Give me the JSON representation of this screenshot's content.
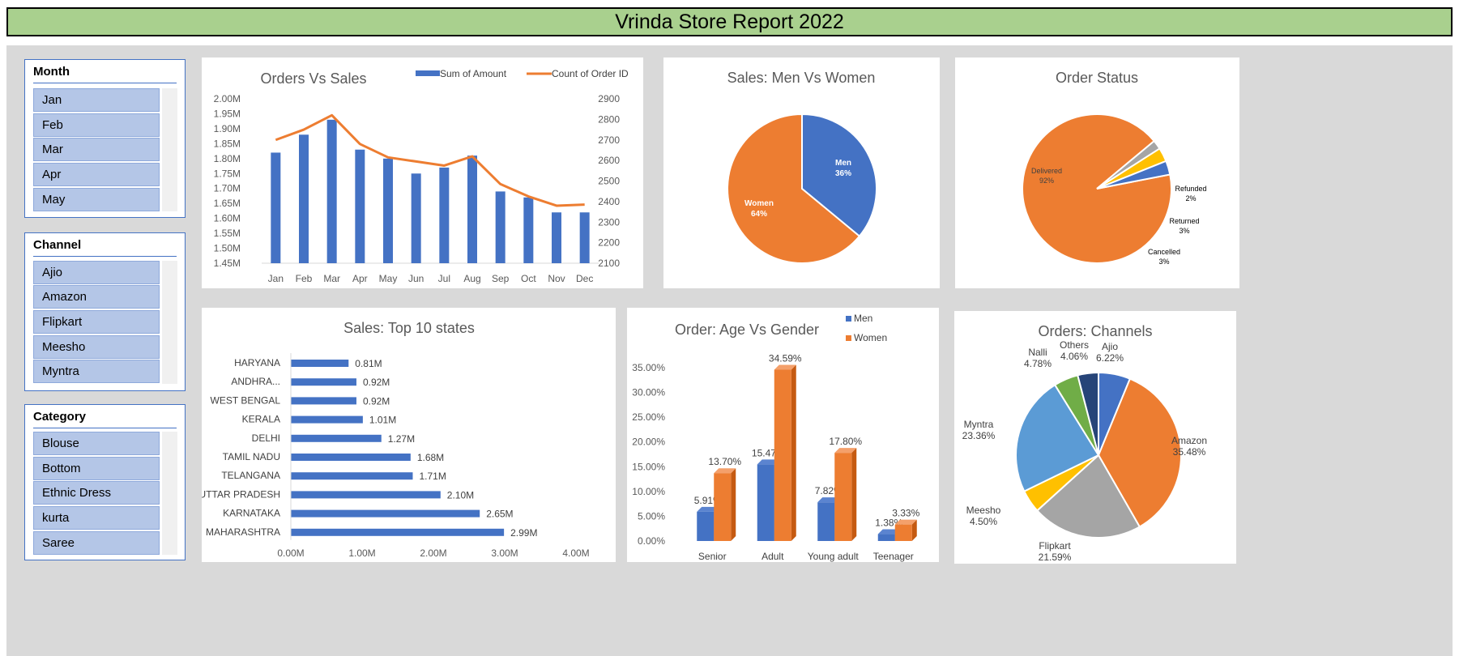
{
  "report_title": "Vrinda Store Report 2022",
  "slicers": {
    "month": {
      "header": "Month",
      "items": [
        "Jan",
        "Feb",
        "Mar",
        "Apr",
        "May"
      ]
    },
    "channel": {
      "header": "Channel",
      "items": [
        "Ajio",
        "Amazon",
        "Flipkart",
        "Meesho",
        "Myntra"
      ]
    },
    "category": {
      "header": "Category",
      "items": [
        "Blouse",
        "Bottom",
        "Ethnic Dress",
        "kurta",
        "Saree"
      ]
    }
  },
  "chart_data": [
    {
      "id": "orders_vs_sales",
      "type": "bar",
      "title": "Orders Vs Sales",
      "categories": [
        "Jan",
        "Feb",
        "Mar",
        "Apr",
        "May",
        "Jun",
        "Jul",
        "Aug",
        "Sep",
        "Oct",
        "Nov",
        "Dec"
      ],
      "series": [
        {
          "name": "Sum of Amount",
          "type": "bar",
          "axis": "left",
          "color": "#4472c4",
          "values": [
            1.82,
            1.88,
            1.93,
            1.83,
            1.8,
            1.75,
            1.77,
            1.81,
            1.69,
            1.67,
            1.62,
            1.62
          ]
        },
        {
          "name": "Count of Order ID",
          "type": "line",
          "axis": "right",
          "color": "#ed7d31",
          "values": [
            2700,
            2750,
            2820,
            2680,
            2615,
            2595,
            2575,
            2620,
            2485,
            2425,
            2380,
            2385
          ]
        }
      ],
      "left_ticks": [
        "2.00M",
        "1.95M",
        "1.90M",
        "1.85M",
        "1.80M",
        "1.75M",
        "1.70M",
        "1.65M",
        "1.60M",
        "1.55M",
        "1.50M",
        "1.45M"
      ],
      "ylim_left": [
        1.45,
        2.0
      ],
      "right_ticks": [
        "2900",
        "2800",
        "2700",
        "2600",
        "2500",
        "2400",
        "2300",
        "2200",
        "2100"
      ],
      "ylim_right": [
        2100,
        2900
      ],
      "legend_position": "top-right"
    },
    {
      "id": "men_vs_women",
      "type": "pie",
      "title": "Sales:  Men Vs Women",
      "slices": [
        {
          "label": "Men",
          "value": 36,
          "display": "36%",
          "color": "#4472c4"
        },
        {
          "label": "Women",
          "value": 64,
          "display": "64%",
          "color": "#ed7d31"
        }
      ]
    },
    {
      "id": "order_status",
      "type": "pie",
      "title": "Order Status",
      "slices": [
        {
          "label": "Delivered",
          "value": 92,
          "display": "92%",
          "color": "#ed7d31"
        },
        {
          "label": "Refunded",
          "value": 2,
          "display": "2%",
          "color": "#a5a5a5"
        },
        {
          "label": "Returned",
          "value": 3,
          "display": "3%",
          "color": "#ffc000"
        },
        {
          "label": "Cancelled",
          "value": 3,
          "display": "3%",
          "color": "#4472c4"
        }
      ]
    },
    {
      "id": "top_states",
      "type": "bar",
      "orientation": "horizontal",
      "title": "Sales: Top 10 states",
      "categories": [
        "HARYANA",
        "ANDHRA...",
        "WEST BENGAL",
        "KERALA",
        "DELHI",
        "TAMIL NADU",
        "TELANGANA",
        "UTTAR PRADESH",
        "KARNATAKA",
        "MAHARASHTRA"
      ],
      "values": [
        0.81,
        0.92,
        0.92,
        1.01,
        1.27,
        1.68,
        1.71,
        2.1,
        2.65,
        2.99
      ],
      "data_labels": [
        "0.81M",
        "0.92M",
        "0.92M",
        "1.01M",
        "1.27M",
        "1.68M",
        "1.71M",
        "2.10M",
        "2.65M",
        "2.99M"
      ],
      "x_ticks": [
        "0.00M",
        "1.00M",
        "2.00M",
        "3.00M",
        "4.00M"
      ],
      "xlim": [
        0,
        4
      ],
      "color": "#4472c4"
    },
    {
      "id": "age_vs_gender",
      "type": "bar",
      "title": "Order: Age Vs Gender",
      "categories": [
        "Senior",
        "Adult",
        "Young adult",
        "Teenager"
      ],
      "series": [
        {
          "name": "Men",
          "color": "#4472c4",
          "values": [
            5.91,
            15.47,
            7.82,
            1.38
          ],
          "labels": [
            "5.91%",
            "15.47%",
            "7.82%",
            "1.38%"
          ]
        },
        {
          "name": "Women",
          "color": "#ed7d31",
          "values": [
            13.7,
            34.59,
            17.8,
            3.33
          ],
          "labels": [
            "13.70%",
            "34.59%",
            "17.80%",
            "3.33%"
          ]
        }
      ],
      "y_ticks": [
        "35.00%",
        "30.00%",
        "25.00%",
        "20.00%",
        "15.00%",
        "10.00%",
        "5.00%",
        "0.00%"
      ],
      "ylim": [
        0,
        35
      ],
      "legend_position": "top-right"
    },
    {
      "id": "channels",
      "type": "pie",
      "title": "Orders: Channels",
      "slices": [
        {
          "label": "Ajio",
          "value": 6.22,
          "display": "6.22%",
          "color": "#4472c4"
        },
        {
          "label": "Amazon",
          "value": 35.48,
          "display": "35.48%",
          "color": "#ed7d31"
        },
        {
          "label": "Flipkart",
          "value": 21.59,
          "display": "21.59%",
          "color": "#a5a5a5"
        },
        {
          "label": "Meesho",
          "value": 4.5,
          "display": "4.50%",
          "color": "#ffc000"
        },
        {
          "label": "Myntra",
          "value": 23.36,
          "display": "23.36%",
          "color": "#5b9bd5"
        },
        {
          "label": "Nalli",
          "value": 4.78,
          "display": "4.78%",
          "color": "#70ad47"
        },
        {
          "label": "Others",
          "value": 4.06,
          "display": "4.06%",
          "color": "#264478"
        }
      ]
    }
  ]
}
